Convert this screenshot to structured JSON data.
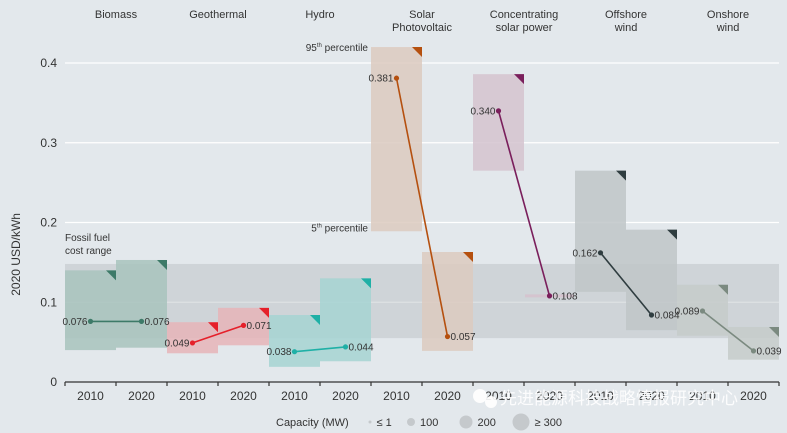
{
  "chart_data": {
    "type": "range-bar-line",
    "title": "",
    "ylabel": "2020 USD/kWh",
    "xlabel": "",
    "ylim": [
      0,
      0.43
    ],
    "yticks": [
      0,
      0.1,
      0.2,
      0.3,
      0.4
    ],
    "ytick_labels": [
      "0",
      "0.1",
      "0.2",
      "0.3",
      "0.4"
    ],
    "grid": true,
    "years": [
      "2010",
      "2020"
    ],
    "fossil_fuel_range": {
      "label_line1": "Fossil fuel",
      "label_line2": "cost range",
      "low": 0.055,
      "high": 0.148
    },
    "percentile_labels": {
      "p95": {
        "num": "95",
        "sup": "th",
        "text": "percentile"
      },
      "p5": {
        "num": "5",
        "sup": "th",
        "text": "percentile"
      }
    },
    "technologies": [
      {
        "name": "Biomass",
        "name_lines": [
          "Biomass"
        ],
        "color": "#3d7a68",
        "box_color": "#a8c3bd",
        "y2010": {
          "low": 0.04,
          "high": 0.14,
          "avg": 0.076,
          "label": "0.076"
        },
        "y2020": {
          "low": 0.043,
          "high": 0.153,
          "avg": 0.076,
          "label": "0.076"
        }
      },
      {
        "name": "Geothermal",
        "name_lines": [
          "Geothermal"
        ],
        "color": "#e5202a",
        "box_color": "#e6b4b8",
        "y2010": {
          "low": 0.036,
          "high": 0.075,
          "avg": 0.049,
          "label": "0.049"
        },
        "y2020": {
          "low": 0.046,
          "high": 0.093,
          "avg": 0.071,
          "label": "0.071"
        }
      },
      {
        "name": "Hydro",
        "name_lines": [
          "Hydro"
        ],
        "color": "#1fb0a6",
        "box_color": "#a6d4d2",
        "y2010": {
          "low": 0.019,
          "high": 0.084,
          "avg": 0.038,
          "label": "0.038"
        },
        "y2020": {
          "low": 0.026,
          "high": 0.13,
          "avg": 0.044,
          "label": "0.044"
        }
      },
      {
        "name": "Solar Photovoltaic",
        "name_lines": [
          "Solar",
          "Photovoltaic"
        ],
        "color": "#b5500f",
        "box_color": "#dccabf",
        "y2010": {
          "low": 0.189,
          "high": 0.42,
          "avg": 0.381,
          "label": "0.381"
        },
        "y2020": {
          "low": 0.039,
          "high": 0.163,
          "avg": 0.057,
          "label": "0.057"
        }
      },
      {
        "name": "Concentrating solar power",
        "name_lines": [
          "Concentrating",
          "solar power"
        ],
        "color": "#7a1f5c",
        "box_color": "#d5c3cf",
        "y2010": {
          "low": 0.265,
          "high": 0.386,
          "avg": 0.34,
          "label": "0.340"
        },
        "y2020": {
          "low": 0.107,
          "high": 0.11,
          "avg": 0.108,
          "label": "0.108"
        }
      },
      {
        "name": "Offshore wind",
        "name_lines": [
          "Offshore",
          "wind"
        ],
        "color": "#2f3d40",
        "box_color": "#bfc5c8",
        "y2010": {
          "low": 0.113,
          "high": 0.265,
          "avg": 0.162,
          "label": "0.162"
        },
        "y2020": {
          "low": 0.065,
          "high": 0.191,
          "avg": 0.084,
          "label": "0.084"
        }
      },
      {
        "name": "Onshore wind",
        "name_lines": [
          "Onshore",
          "wind"
        ],
        "color": "#7b8a80",
        "box_color": "#c5cbca",
        "y2010": {
          "low": 0.058,
          "high": 0.122,
          "avg": 0.089,
          "label": "0.089"
        },
        "y2020": {
          "low": 0.028,
          "high": 0.069,
          "avg": 0.039,
          "label": "0.039"
        }
      }
    ],
    "legend": {
      "title": "Capacity (MW)",
      "placement": "bottom-center",
      "items": [
        {
          "label": "≤ 1",
          "size": "tiny"
        },
        {
          "label": "100",
          "size": "small"
        },
        {
          "label": "200",
          "size": "medium"
        },
        {
          "label": "≥ 300",
          "size": "large"
        }
      ]
    }
  },
  "watermark": {
    "text": "先进能源科技战略情报研究中心"
  },
  "colors": {
    "background": "#e3e8ec",
    "grid": "#ffffff",
    "fossil_band": "#c5cacd",
    "axis": "#333333"
  }
}
